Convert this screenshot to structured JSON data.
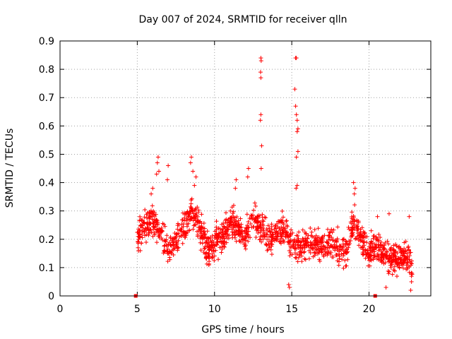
{
  "chart_data": {
    "type": "scatter",
    "title": "Day 007 of 2024, SRMTID for receiver qlln",
    "xlabel": "GPS time / hours",
    "ylabel": "SRMTID / TECUs",
    "xlim": [
      0,
      24
    ],
    "ylim": [
      0,
      0.9
    ],
    "xticks": [
      "0",
      "5",
      "10",
      "15",
      "20"
    ],
    "yticks": [
      "0",
      "0.1",
      "0.2",
      "0.3",
      "0.4",
      "0.5",
      "0.6",
      "0.7",
      "0.8",
      "0.9"
    ],
    "grid": true,
    "marker": "+",
    "series_color": "#ff0000",
    "background_trend": [
      {
        "x": 5.0,
        "y": 0.21
      },
      {
        "x": 5.5,
        "y": 0.24
      },
      {
        "x": 6.0,
        "y": 0.27
      },
      {
        "x": 6.5,
        "y": 0.22
      },
      {
        "x": 7.0,
        "y": 0.17
      },
      {
        "x": 7.5,
        "y": 0.19
      },
      {
        "x": 8.0,
        "y": 0.23
      },
      {
        "x": 8.5,
        "y": 0.29
      },
      {
        "x": 9.0,
        "y": 0.25
      },
      {
        "x": 9.5,
        "y": 0.17
      },
      {
        "x": 10.0,
        "y": 0.18
      },
      {
        "x": 10.5,
        "y": 0.21
      },
      {
        "x": 11.0,
        "y": 0.26
      },
      {
        "x": 11.5,
        "y": 0.24
      },
      {
        "x": 12.0,
        "y": 0.21
      },
      {
        "x": 12.5,
        "y": 0.27
      },
      {
        "x": 13.0,
        "y": 0.24
      },
      {
        "x": 13.5,
        "y": 0.2
      },
      {
        "x": 14.0,
        "y": 0.22
      },
      {
        "x": 14.5,
        "y": 0.24
      },
      {
        "x": 15.0,
        "y": 0.18
      },
      {
        "x": 15.5,
        "y": 0.17
      },
      {
        "x": 16.0,
        "y": 0.19
      },
      {
        "x": 16.5,
        "y": 0.18
      },
      {
        "x": 17.0,
        "y": 0.17
      },
      {
        "x": 17.5,
        "y": 0.19
      },
      {
        "x": 18.0,
        "y": 0.17
      },
      {
        "x": 18.5,
        "y": 0.16
      },
      {
        "x": 19.0,
        "y": 0.27
      },
      {
        "x": 19.5,
        "y": 0.2
      },
      {
        "x": 20.0,
        "y": 0.16
      },
      {
        "x": 20.5,
        "y": 0.18
      },
      {
        "x": 21.0,
        "y": 0.15
      },
      {
        "x": 21.5,
        "y": 0.13
      },
      {
        "x": 22.0,
        "y": 0.14
      },
      {
        "x": 22.5,
        "y": 0.13
      },
      {
        "x": 22.8,
        "y": 0.1
      }
    ],
    "highlighted_points": [
      {
        "x": 6.35,
        "y": 0.49
      },
      {
        "x": 6.3,
        "y": 0.47
      },
      {
        "x": 6.4,
        "y": 0.44
      },
      {
        "x": 6.25,
        "y": 0.43
      },
      {
        "x": 6.0,
        "y": 0.38
      },
      {
        "x": 5.9,
        "y": 0.36
      },
      {
        "x": 7.0,
        "y": 0.46
      },
      {
        "x": 6.95,
        "y": 0.41
      },
      {
        "x": 8.5,
        "y": 0.49
      },
      {
        "x": 8.45,
        "y": 0.47
      },
      {
        "x": 8.6,
        "y": 0.44
      },
      {
        "x": 8.8,
        "y": 0.42
      },
      {
        "x": 8.7,
        "y": 0.39
      },
      {
        "x": 12.2,
        "y": 0.45
      },
      {
        "x": 12.15,
        "y": 0.42
      },
      {
        "x": 11.4,
        "y": 0.41
      },
      {
        "x": 11.35,
        "y": 0.38
      },
      {
        "x": 13.0,
        "y": 0.84
      },
      {
        "x": 13.02,
        "y": 0.83
      },
      {
        "x": 12.98,
        "y": 0.79
      },
      {
        "x": 13.0,
        "y": 0.77
      },
      {
        "x": 13.0,
        "y": 0.64
      },
      {
        "x": 12.97,
        "y": 0.62
      },
      {
        "x": 13.05,
        "y": 0.53
      },
      {
        "x": 13.02,
        "y": 0.45
      },
      {
        "x": 15.25,
        "y": 0.84
      },
      {
        "x": 15.3,
        "y": 0.84
      },
      {
        "x": 15.2,
        "y": 0.73
      },
      {
        "x": 15.25,
        "y": 0.67
      },
      {
        "x": 15.3,
        "y": 0.64
      },
      {
        "x": 15.35,
        "y": 0.62
      },
      {
        "x": 15.4,
        "y": 0.59
      },
      {
        "x": 15.35,
        "y": 0.58
      },
      {
        "x": 15.4,
        "y": 0.51
      },
      {
        "x": 15.3,
        "y": 0.49
      },
      {
        "x": 15.35,
        "y": 0.39
      },
      {
        "x": 15.28,
        "y": 0.38
      },
      {
        "x": 19.0,
        "y": 0.4
      },
      {
        "x": 19.1,
        "y": 0.38
      },
      {
        "x": 19.05,
        "y": 0.36
      },
      {
        "x": 20.55,
        "y": 0.28
      },
      {
        "x": 21.3,
        "y": 0.29
      },
      {
        "x": 22.6,
        "y": 0.28
      },
      {
        "x": 14.8,
        "y": 0.04
      },
      {
        "x": 14.85,
        "y": 0.03
      },
      {
        "x": 22.7,
        "y": 0.02
      },
      {
        "x": 22.75,
        "y": 0.05
      },
      {
        "x": 21.1,
        "y": 0.03
      }
    ],
    "baseline_markers": [
      {
        "x": 4.9,
        "y": 0.0
      },
      {
        "x": 20.4,
        "y": 0.0
      }
    ]
  }
}
